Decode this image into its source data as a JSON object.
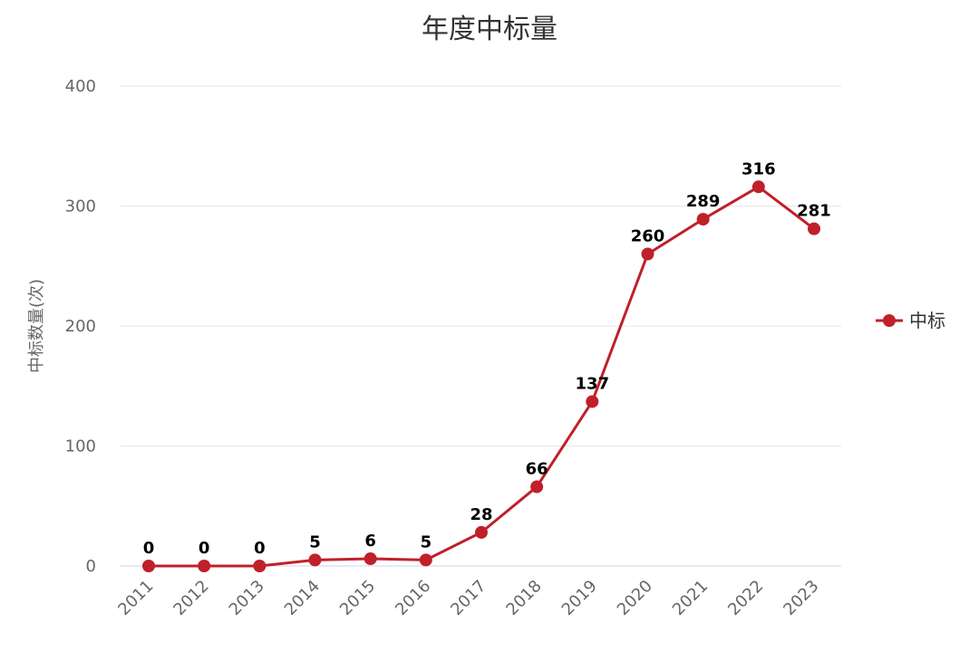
{
  "chart_data": {
    "type": "line",
    "title": "年度中标量",
    "xlabel": "",
    "ylabel": "中标数量(次)",
    "categories": [
      "2011",
      "2012",
      "2013",
      "2014",
      "2015",
      "2016",
      "2017",
      "2018",
      "2019",
      "2020",
      "2021",
      "2022",
      "2023"
    ],
    "series": [
      {
        "name": "中标",
        "values": [
          0,
          0,
          0,
          5,
          6,
          5,
          28,
          66,
          137,
          260,
          289,
          316,
          281
        ],
        "color": "#c0202a"
      }
    ],
    "ylim": [
      0,
      400
    ],
    "yticks": [
      0,
      100,
      200,
      300,
      400
    ],
    "grid": true,
    "legend": "right"
  }
}
